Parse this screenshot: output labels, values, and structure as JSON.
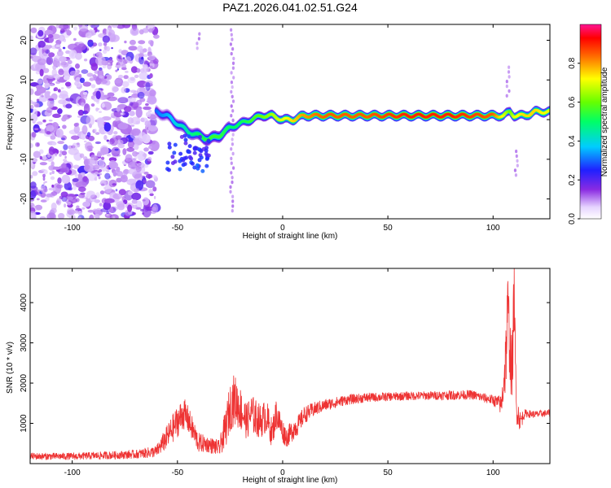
{
  "title": "PAZ1.2026.041.02.51.G24",
  "chart_data": [
    {
      "type": "heatmap",
      "xlabel": "Height of straight line (km)",
      "ylabel": "Frequency (Hz)",
      "xlim": [
        -120,
        127
      ],
      "ylim": [
        -25,
        24
      ],
      "xticks": [
        -100,
        -50,
        0,
        50,
        100
      ],
      "yticks": [
        -20,
        -10,
        0,
        10,
        20
      ],
      "colorbar": {
        "label": "Normalized spectral amplitude",
        "range": [
          0,
          1
        ],
        "ticks": [
          "0.0",
          "0.2",
          "0.4",
          "0.6",
          "0.8"
        ],
        "colormap": "rainbow (white, violet, blue, cyan, green, yellow, red, magenta)"
      },
      "ridge": {
        "description": "dominant frequency ridge",
        "x": [
          -60,
          -55,
          -50,
          -45,
          -40,
          -35,
          -30,
          -25,
          -20,
          -15,
          -10,
          -5,
          0,
          5,
          10,
          20,
          40,
          60,
          80,
          100,
          105,
          108,
          110,
          115,
          120,
          127
        ],
        "y": [
          2,
          1,
          -1,
          -3,
          -4,
          -5,
          -4,
          -2,
          -1,
          0,
          1,
          1,
          0,
          0,
          1,
          1,
          1,
          1,
          1,
          1,
          1,
          2,
          1,
          1,
          2,
          2
        ],
        "amplitude": [
          0.3,
          0.35,
          0.4,
          0.45,
          0.5,
          0.55,
          0.55,
          0.5,
          0.5,
          0.55,
          0.6,
          0.65,
          0.7,
          0.75,
          0.8,
          0.85,
          0.85,
          0.9,
          0.9,
          0.85,
          0.7,
          0.6,
          0.7,
          0.75,
          0.75,
          0.7
        ]
      },
      "noise_region_x": [
        -120,
        -60
      ]
    },
    {
      "type": "line",
      "xlabel": "Height of straight line (km)",
      "ylabel": "SNR (10 * v/v)",
      "xlim": [
        -120,
        127
      ],
      "ylim": [
        0,
        4850
      ],
      "xticks": [
        -100,
        -50,
        0,
        50,
        100
      ],
      "yticks": [
        1000,
        2000,
        3000,
        4000
      ],
      "color": "#ee3333",
      "series": [
        {
          "name": "",
          "x": [
            -120,
            -100,
            -80,
            -70,
            -60,
            -55,
            -50,
            -47,
            -45,
            -42,
            -40,
            -35,
            -30,
            -27,
            -25,
            -23,
            -20,
            -17,
            -15,
            -12,
            -10,
            -8,
            -5,
            -3,
            0,
            2,
            5,
            8,
            10,
            15,
            20,
            30,
            40,
            50,
            60,
            70,
            80,
            90,
            95,
            100,
            104,
            106,
            107,
            108,
            109,
            110,
            111,
            113,
            115,
            120,
            127
          ],
          "y": [
            180,
            180,
            210,
            230,
            300,
            650,
            1050,
            1250,
            1100,
            750,
            520,
            470,
            380,
            900,
            1400,
            1600,
            1350,
            1050,
            1250,
            1100,
            1050,
            1200,
            750,
            1250,
            800,
            650,
            850,
            1000,
            1200,
            1350,
            1450,
            1580,
            1640,
            1660,
            1680,
            1690,
            1700,
            1710,
            1640,
            1580,
            1450,
            2600,
            3900,
            2900,
            2100,
            4300,
            1400,
            1050,
            1250,
            1220,
            1260
          ],
          "noise_amplitude": [
            90,
            90,
            100,
            110,
            150,
            300,
            400,
            400,
            350,
            300,
            250,
            200,
            200,
            500,
            600,
            650,
            550,
            450,
            500,
            450,
            400,
            450,
            350,
            400,
            300,
            250,
            280,
            250,
            220,
            180,
            150,
            130,
            120,
            110,
            110,
            110,
            120,
            120,
            120,
            130,
            250,
            900,
            900,
            900,
            900,
            900,
            400,
            250,
            100,
            90,
            90
          ]
        }
      ]
    }
  ]
}
